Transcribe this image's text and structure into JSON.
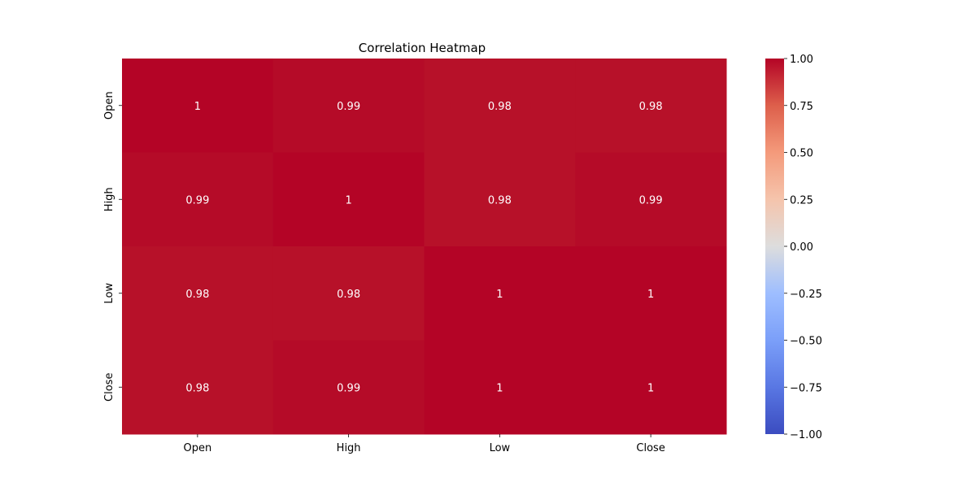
{
  "chart_data": {
    "type": "heatmap",
    "title": "Correlation Heatmap",
    "xlabel": "",
    "ylabel": "",
    "x_categories": [
      "Open",
      "High",
      "Low",
      "Close"
    ],
    "y_categories": [
      "Open",
      "High",
      "Low",
      "Close"
    ],
    "values": [
      [
        1.0,
        0.99,
        0.98,
        0.98
      ],
      [
        0.99,
        1.0,
        0.98,
        0.99
      ],
      [
        0.98,
        0.98,
        1.0,
        1.0
      ],
      [
        0.98,
        0.99,
        1.0,
        1.0
      ]
    ],
    "annotations": [
      [
        "1",
        "0.99",
        "0.98",
        "0.98"
      ],
      [
        "0.99",
        "1",
        "0.98",
        "0.99"
      ],
      [
        "0.98",
        "0.98",
        "1",
        "1"
      ],
      [
        "0.98",
        "0.99",
        "1",
        "1"
      ]
    ],
    "colormap": "coolwarm",
    "vmin": -1.0,
    "vmax": 1.0,
    "colorbar": {
      "ticks": [
        1.0,
        0.75,
        0.5,
        0.25,
        0.0,
        -0.25,
        -0.5,
        -0.75,
        -1.0
      ],
      "tick_labels": [
        "1.00",
        "0.75",
        "0.50",
        "0.25",
        "0.00",
        "−0.25",
        "−0.50",
        "−0.75",
        "−1.00"
      ]
    },
    "annotation_color": "#ffffff",
    "colors": {
      "low": "#3b4cc0",
      "mid": "#dddddd",
      "high": "#b40426"
    }
  }
}
